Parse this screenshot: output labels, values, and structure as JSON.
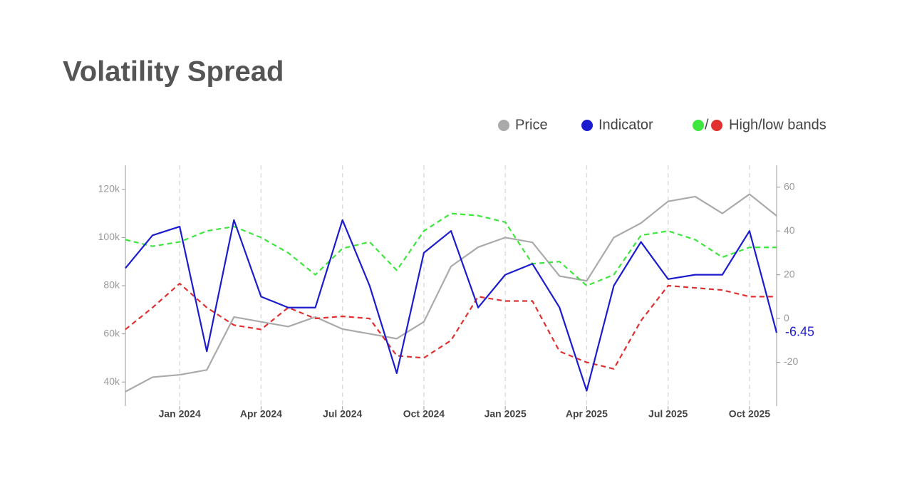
{
  "chart_data": {
    "type": "line",
    "title": "Volatility Spread",
    "x": [
      "2023-11",
      "2023-12",
      "2024-01",
      "2024-02",
      "2024-03",
      "2024-04",
      "2024-05",
      "2024-06",
      "2024-07",
      "2024-08",
      "2024-09",
      "2024-10",
      "2024-11",
      "2024-12",
      "2025-01",
      "2025-02",
      "2025-03",
      "2025-04",
      "2025-05",
      "2025-06",
      "2025-07",
      "2025-08",
      "2025-09",
      "2025-10",
      "2025-11"
    ],
    "xlim": [
      "2023-11",
      "2025-11"
    ],
    "xticks": [
      {
        "value": "2024-01",
        "label": "Jan 2024"
      },
      {
        "value": "2024-04",
        "label": "Apr 2024"
      },
      {
        "value": "2024-07",
        "label": "Jul 2024"
      },
      {
        "value": "2024-10",
        "label": "Oct 2024"
      },
      {
        "value": "2025-01",
        "label": "Jan 2025"
      },
      {
        "value": "2025-04",
        "label": "Apr 2025"
      },
      {
        "value": "2025-07",
        "label": "Jul 2025"
      },
      {
        "value": "2025-10",
        "label": "Oct 2025"
      }
    ],
    "ylim": [
      30000,
      130000
    ],
    "yticks": [
      {
        "value": 40000,
        "label": "40k"
      },
      {
        "value": 60000,
        "label": "60k"
      },
      {
        "value": 80000,
        "label": "80k"
      },
      {
        "value": 100000,
        "label": "100k"
      },
      {
        "value": 120000,
        "label": "120k"
      }
    ],
    "y2lim": [
      -40,
      70
    ],
    "y2ticks": [
      -20,
      0,
      20,
      40,
      60
    ],
    "grid": true,
    "legend": "top-right",
    "legend_separator": "/",
    "series": [
      {
        "name": "Price",
        "color": "#aaaaaa",
        "values": [
          36000,
          42000,
          43000,
          45000,
          67000,
          65000,
          63000,
          67000,
          62000,
          60000,
          58000,
          65000,
          88000,
          96000,
          100000,
          98000,
          84000,
          82000,
          100000,
          106000,
          115000,
          117000,
          110000,
          118000,
          109000
        ]
      },
      {
        "name": "Indicator",
        "color": "#1c1ccf",
        "axis": "y2",
        "values": [
          23,
          38,
          42,
          -15,
          45,
          10,
          5,
          5,
          45,
          15,
          -25,
          30,
          40,
          5,
          20,
          25,
          5,
          -33,
          15,
          35,
          18,
          20,
          20,
          40,
          -6.45
        ]
      },
      {
        "name": "High/low bands",
        "color": "#3de63d",
        "axis": "y2",
        "dash": true,
        "values": [
          36,
          33,
          35,
          40,
          42,
          37,
          30,
          20,
          32,
          35,
          22,
          40,
          48,
          47,
          44,
          25,
          26,
          15,
          20,
          38,
          40,
          36,
          28,
          32.5,
          32.5
        ]
      },
      {
        "color": "#e03030",
        "axis": "y2",
        "dash": true,
        "values": [
          -5,
          5,
          16,
          5,
          -3,
          -5,
          5,
          0,
          1,
          0,
          -17,
          -18,
          -10,
          10,
          8,
          8,
          -15,
          -20,
          -23,
          -1,
          15,
          14,
          13,
          10,
          10
        ]
      }
    ]
  }
}
